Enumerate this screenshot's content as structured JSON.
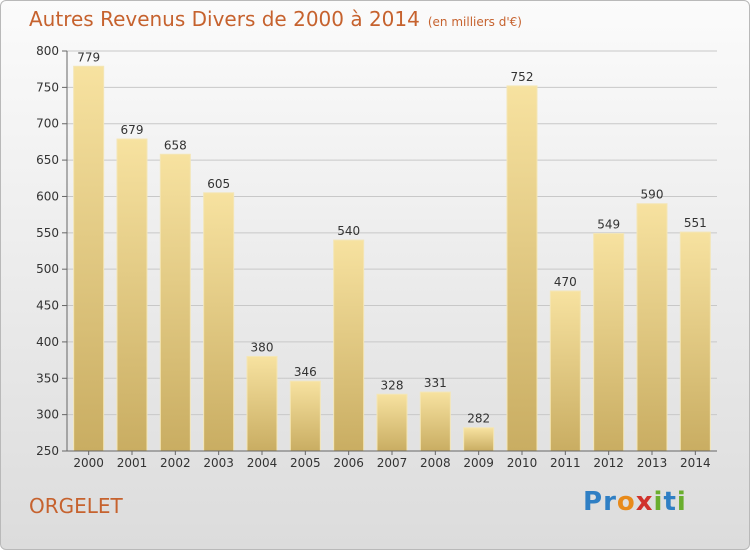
{
  "header": {
    "title": "Autres Revenus Divers de 2000 à 2014",
    "unit": "(en milliers d'€)"
  },
  "footer": {
    "place": "ORGELET",
    "logo_letters": [
      "P",
      "r",
      "o",
      "x",
      "i",
      "t",
      "i"
    ],
    "logo_colors": [
      "#2f7fc4",
      "#2f7fc4",
      "#e88a1a",
      "#d0322c",
      "#6aae2e",
      "#2f7fc4",
      "#6aae2e"
    ]
  },
  "colors": {
    "title": "#c6622e",
    "bar_light": "#f7e2a0",
    "bar_dark": "#c9ad62",
    "grid": "#c8c8c8"
  },
  "chart_data": {
    "type": "bar",
    "title": "Autres Revenus Divers de 2000 à 2014",
    "subtitle": "(en milliers d'€)",
    "categories": [
      "2000",
      "2001",
      "2002",
      "2003",
      "2004",
      "2005",
      "2006",
      "2007",
      "2008",
      "2009",
      "2010",
      "2011",
      "2012",
      "2013",
      "2014"
    ],
    "values": [
      779,
      679,
      658,
      605,
      380,
      346,
      540,
      328,
      331,
      282,
      752,
      470,
      549,
      590,
      551
    ],
    "ylim": [
      250,
      800
    ],
    "yticks": [
      250,
      300,
      350,
      400,
      450,
      500,
      550,
      600,
      650,
      700,
      750,
      800
    ],
    "grid": true
  }
}
